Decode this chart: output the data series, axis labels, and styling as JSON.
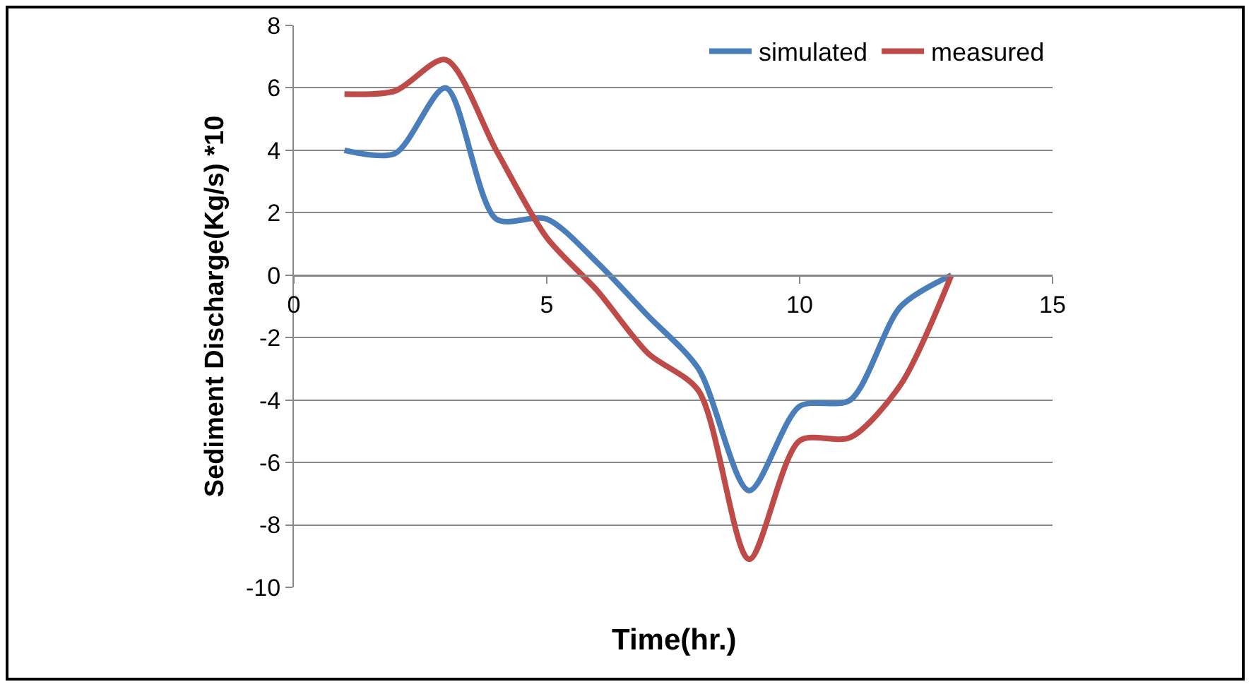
{
  "chart_data": {
    "type": "line",
    "xlabel": "Time(hr.)",
    "ylabel": "Sediment Discharge(Kg/s) *10",
    "xlim": [
      0,
      15
    ],
    "xticks": [
      0,
      5,
      10,
      15
    ],
    "ylim": [
      -10,
      8
    ],
    "yticks": [
      -10,
      -8,
      -6,
      -4,
      -2,
      0,
      2,
      4,
      6,
      8
    ],
    "grid": "y",
    "legend": "top right",
    "marker": "none",
    "line_style": "solid",
    "series": [
      {
        "name": "simulated",
        "color": "#4a7ebb",
        "x": [
          1,
          2,
          3,
          4,
          5,
          6,
          7,
          8,
          9,
          10,
          11,
          12,
          13
        ],
        "values": [
          4.0,
          3.9,
          6.0,
          1.8,
          1.8,
          0.4,
          -1.3,
          -3.0,
          -6.9,
          -4.2,
          -4.0,
          -1.0,
          0
        ]
      },
      {
        "name": "measured",
        "color": "#be4b48",
        "x": [
          1,
          2,
          3,
          4,
          5,
          6,
          7,
          8,
          9,
          10,
          11,
          12,
          13
        ],
        "values": [
          5.8,
          5.9,
          6.9,
          4.0,
          1.2,
          -0.5,
          -2.5,
          -3.7,
          -9.1,
          -5.3,
          -5.2,
          -3.5,
          0
        ]
      }
    ]
  }
}
